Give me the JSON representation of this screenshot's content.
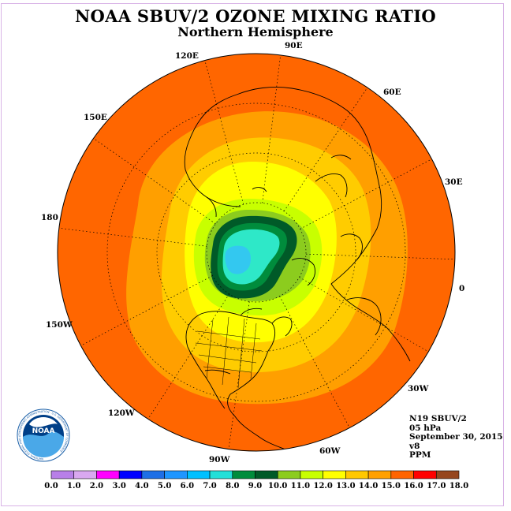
{
  "header": {
    "title": "NOAA SBUV/2 OZONE MIXING RATIO",
    "subtitle": "Northern Hemisphere"
  },
  "longitude_labels": [
    "120E",
    "90E",
    "60E",
    "30E",
    "0",
    "30W",
    "60W",
    "90W",
    "120W",
    "150W",
    "180",
    "150E"
  ],
  "info": {
    "instrument": "N19 SBUV/2",
    "level": "05 hPa",
    "date": "September 30, 2015",
    "version": "v8",
    "units": "PPM"
  },
  "logo": {
    "text": "NOAA",
    "ring_text": "NATIONAL OCEANIC AND ATMOSPHERIC ADMINISTRATION · U.S. DEPARTMENT OF COMMERCE"
  },
  "colorbar": {
    "ticks": [
      "0.0",
      "1.0",
      "2.0",
      "3.0",
      "4.0",
      "5.0",
      "6.0",
      "7.0",
      "8.0",
      "9.0",
      "10.0",
      "11.0",
      "12.0",
      "13.0",
      "14.0",
      "15.0",
      "16.0",
      "17.0",
      "18.0"
    ],
    "colors": [
      "#b87fe8",
      "#d9a8f0",
      "#ff00ff",
      "#0000ff",
      "#1e6fe6",
      "#1e96ff",
      "#00c0ff",
      "#22e0d8",
      "#008c3c",
      "#005a28",
      "#8ccc1e",
      "#c8ff00",
      "#ffff00",
      "#ffc800",
      "#ffa000",
      "#ff6400",
      "#ff0000",
      "#96461e"
    ]
  },
  "map_colors": {
    "band_15_16": "#ff6600",
    "band_14_15": "#ff9f00",
    "band_13_14": "#ffcc00",
    "band_12_13": "#ffff00",
    "band_11_12": "#c8ff00",
    "band_10_11": "#8ccc1e",
    "band_9_10": "#005a28",
    "band_8_9": "#008c3c",
    "band_7_8": "#2ee8c8",
    "band_6_7": "#33c8f0"
  }
}
